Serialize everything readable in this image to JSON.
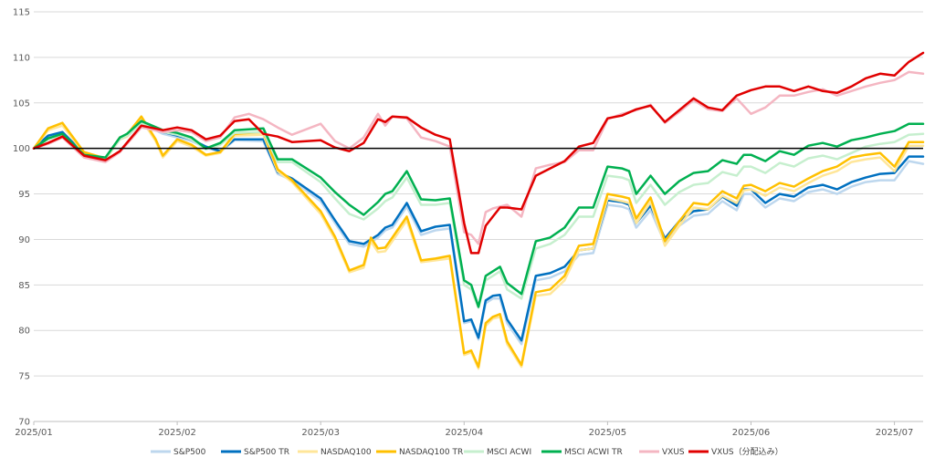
{
  "chart_data": {
    "type": "line",
    "title": "",
    "xlabel": "",
    "ylabel": "",
    "ylim": [
      70,
      115
    ],
    "yticks": [
      "70",
      "75",
      "80",
      "85",
      "90",
      "95",
      "100",
      "105",
      "110",
      "115"
    ],
    "xticks": [
      "2025/01",
      "2025/02",
      "2025/03",
      "2025/04",
      "2025/05",
      "2025/06",
      "2025/07"
    ],
    "xlim_months": [
      0,
      6.2
    ],
    "reference_line": 100,
    "grid": "horizontal",
    "legend_position": "bottom",
    "series": [
      {
        "name": "S&P500",
        "color": "#bdd7ee",
        "width": 2.5,
        "x": [
          0,
          0.1,
          0.2,
          0.35,
          0.5,
          0.6,
          0.65,
          0.75,
          0.9,
          1.0,
          1.1,
          1.2,
          1.3,
          1.4,
          1.6,
          1.7,
          1.8,
          2.0,
          2.1,
          2.2,
          2.3,
          2.4,
          2.45,
          2.5,
          2.6,
          2.7,
          2.8,
          2.9,
          3.0,
          3.05,
          3.1,
          3.15,
          3.2,
          3.25,
          3.3,
          3.4,
          3.5,
          3.6,
          3.7,
          3.8,
          3.9,
          4.0,
          4.1,
          4.15,
          4.2,
          4.3,
          4.4,
          4.5,
          4.6,
          4.7,
          4.8,
          4.9,
          4.95,
          5.0,
          5.1,
          5.2,
          5.3,
          5.4,
          5.5,
          5.6,
          5.7,
          5.8,
          5.9,
          6.0,
          6.1,
          6.2
        ],
        "y": [
          100,
          101.2,
          101.6,
          99.3,
          98.8,
          101,
          101.3,
          102.8,
          101.6,
          101.2,
          100.8,
          100.1,
          99.6,
          100.9,
          100.8,
          97.2,
          96.5,
          94.2,
          91.8,
          89.5,
          89.2,
          90.2,
          91,
          91.3,
          93.6,
          90.5,
          91,
          91.2,
          80.8,
          81,
          79,
          83,
          83.5,
          83.5,
          80.8,
          78.5,
          85.5,
          85.8,
          86.5,
          88.3,
          88.5,
          93.8,
          93.6,
          93.3,
          91.3,
          93.2,
          89.6,
          91.5,
          92.6,
          92.8,
          94.2,
          93.2,
          95,
          95,
          93.5,
          94.5,
          94.2,
          95.2,
          95.5,
          95,
          95.8,
          96.3,
          96.5,
          96.5,
          98.6,
          98.3
        ]
      },
      {
        "name": "S&P500 TR",
        "color": "#0070c0",
        "width": 2.5,
        "x": [
          0,
          0.1,
          0.2,
          0.35,
          0.5,
          0.6,
          0.65,
          0.75,
          0.9,
          1.0,
          1.1,
          1.2,
          1.3,
          1.4,
          1.6,
          1.7,
          1.8,
          2.0,
          2.1,
          2.2,
          2.3,
          2.4,
          2.45,
          2.5,
          2.6,
          2.7,
          2.8,
          2.9,
          3.0,
          3.05,
          3.1,
          3.15,
          3.2,
          3.25,
          3.3,
          3.4,
          3.5,
          3.6,
          3.7,
          3.8,
          3.9,
          4.0,
          4.1,
          4.15,
          4.2,
          4.3,
          4.4,
          4.5,
          4.6,
          4.7,
          4.8,
          4.9,
          4.95,
          5.0,
          5.1,
          5.2,
          5.3,
          5.4,
          5.5,
          5.6,
          5.7,
          5.8,
          5.9,
          6.0,
          6.1,
          6.2
        ],
        "y": [
          100,
          101.4,
          101.8,
          99.4,
          98.9,
          101.2,
          101.5,
          103,
          101.8,
          101.4,
          101,
          100.2,
          99.7,
          101,
          101,
          97.4,
          96.7,
          94.5,
          92.1,
          89.8,
          89.5,
          90.5,
          91.3,
          91.6,
          94,
          90.9,
          91.4,
          91.6,
          81,
          81.2,
          79.2,
          83.3,
          83.8,
          83.9,
          81.2,
          78.9,
          86,
          86.3,
          87,
          88.8,
          89,
          94.3,
          94.1,
          93.8,
          91.8,
          93.7,
          90.1,
          92,
          93.1,
          93.3,
          94.7,
          93.7,
          95.5,
          95.5,
          94,
          95,
          94.7,
          95.7,
          96,
          95.5,
          96.3,
          96.8,
          97.2,
          97.3,
          99.1,
          99.1
        ]
      },
      {
        "name": "NASDAQ100",
        "color": "#ffe699",
        "width": 2.5,
        "x": [
          0,
          0.1,
          0.2,
          0.35,
          0.5,
          0.6,
          0.65,
          0.75,
          0.85,
          0.9,
          1.0,
          1.1,
          1.2,
          1.3,
          1.4,
          1.6,
          1.7,
          1.8,
          2.0,
          2.1,
          2.2,
          2.3,
          2.35,
          2.4,
          2.45,
          2.5,
          2.6,
          2.7,
          2.8,
          2.9,
          3.0,
          3.05,
          3.1,
          3.15,
          3.2,
          3.25,
          3.3,
          3.4,
          3.5,
          3.6,
          3.7,
          3.8,
          3.9,
          4.0,
          4.1,
          4.15,
          4.2,
          4.3,
          4.4,
          4.5,
          4.6,
          4.7,
          4.8,
          4.9,
          4.95,
          5.0,
          5.1,
          5.2,
          5.3,
          5.4,
          5.5,
          5.6,
          5.7,
          5.8,
          5.9,
          6.0,
          6.1,
          6.2
        ],
        "y": [
          100,
          102,
          102.5,
          99.5,
          98.8,
          101,
          101.3,
          103.2,
          100.8,
          99,
          100.8,
          100.2,
          99.2,
          99.5,
          101.4,
          101.5,
          97.5,
          96.3,
          92.8,
          90,
          86.4,
          86.9,
          89.8,
          88.6,
          88.7,
          89.8,
          92.1,
          87.5,
          87.7,
          87.9,
          77.3,
          77.6,
          75.8,
          80.5,
          81.3,
          81.5,
          78.5,
          76,
          83.8,
          84,
          85.5,
          88.8,
          89,
          94.5,
          94.2,
          94,
          91.8,
          94.1,
          89.3,
          91.5,
          93.5,
          93.3,
          94.8,
          94,
          95.4,
          95.5,
          94.8,
          95.7,
          95.3,
          96.2,
          97,
          97.5,
          98.5,
          98.8,
          99,
          97.5,
          100.3,
          100.3
        ]
      },
      {
        "name": "NASDAQ100 TR",
        "color": "#ffc000",
        "width": 2.5,
        "x": [
          0,
          0.1,
          0.2,
          0.35,
          0.5,
          0.6,
          0.65,
          0.75,
          0.85,
          0.9,
          1.0,
          1.1,
          1.2,
          1.3,
          1.4,
          1.6,
          1.7,
          1.8,
          2.0,
          2.1,
          2.2,
          2.3,
          2.35,
          2.4,
          2.45,
          2.5,
          2.6,
          2.7,
          2.8,
          2.9,
          3.0,
          3.05,
          3.1,
          3.15,
          3.2,
          3.25,
          3.3,
          3.4,
          3.5,
          3.6,
          3.7,
          3.8,
          3.9,
          4.0,
          4.1,
          4.15,
          4.2,
          4.3,
          4.4,
          4.5,
          4.6,
          4.7,
          4.8,
          4.9,
          4.95,
          5.0,
          5.1,
          5.2,
          5.3,
          5.4,
          5.5,
          5.6,
          5.7,
          5.8,
          5.9,
          6.0,
          6.1,
          6.2
        ],
        "y": [
          100,
          102.2,
          102.8,
          99.6,
          98.9,
          101.2,
          101.5,
          103.5,
          101,
          99.2,
          101,
          100.4,
          99.3,
          99.6,
          101.6,
          101.8,
          97.7,
          96.5,
          93.1,
          90.3,
          86.6,
          87.2,
          90.2,
          89,
          89.1,
          90.2,
          92.5,
          87.7,
          87.9,
          88.2,
          77.5,
          77.8,
          76,
          80.8,
          81.5,
          81.8,
          78.8,
          76.2,
          84.2,
          84.5,
          86,
          89.3,
          89.5,
          95,
          94.7,
          94.5,
          92.3,
          94.6,
          89.8,
          92,
          94,
          93.8,
          95.3,
          94.5,
          95.9,
          96,
          95.3,
          96.2,
          95.8,
          96.7,
          97.5,
          98,
          99,
          99.3,
          99.5,
          98,
          100.7,
          100.7
        ]
      },
      {
        "name": "MSCI ACWI",
        "color": "#c6efce",
        "width": 2.5,
        "x": [
          0,
          0.1,
          0.2,
          0.35,
          0.5,
          0.6,
          0.65,
          0.75,
          0.9,
          1.0,
          1.1,
          1.2,
          1.3,
          1.4,
          1.6,
          1.7,
          1.8,
          2.0,
          2.1,
          2.2,
          2.3,
          2.4,
          2.45,
          2.5,
          2.6,
          2.7,
          2.8,
          2.9,
          3.0,
          3.05,
          3.1,
          3.15,
          3.2,
          3.25,
          3.3,
          3.4,
          3.5,
          3.6,
          3.7,
          3.8,
          3.9,
          4.0,
          4.1,
          4.15,
          4.2,
          4.3,
          4.4,
          4.5,
          4.6,
          4.7,
          4.8,
          4.9,
          4.95,
          5.0,
          5.1,
          5.2,
          5.3,
          5.4,
          5.5,
          5.6,
          5.7,
          5.8,
          5.9,
          6.0,
          6.1,
          6.2
        ],
        "y": [
          100,
          101,
          101.5,
          99.2,
          98.9,
          101,
          101.4,
          102.7,
          101.8,
          101.5,
          101,
          99.9,
          100.4,
          101.7,
          101.8,
          98.5,
          98.5,
          96.3,
          94.5,
          92.8,
          92.2,
          93.4,
          94.2,
          94.6,
          96.8,
          93.8,
          93.8,
          94,
          85,
          84.5,
          82.5,
          85.5,
          86,
          86.5,
          84.5,
          83.5,
          89,
          89.5,
          90.5,
          92.5,
          92.5,
          97,
          96.8,
          96.5,
          94,
          96,
          93.8,
          95.2,
          96,
          96.2,
          97.4,
          97,
          98,
          98,
          97.3,
          98.4,
          98,
          98.9,
          99.2,
          98.8,
          99.5,
          100.2,
          100.5,
          100.7,
          101.5,
          101.6
        ]
      },
      {
        "name": "MSCI ACWI TR",
        "color": "#00b050",
        "width": 2.5,
        "x": [
          0,
          0.1,
          0.2,
          0.35,
          0.5,
          0.6,
          0.65,
          0.75,
          0.9,
          1.0,
          1.1,
          1.2,
          1.3,
          1.4,
          1.6,
          1.7,
          1.8,
          2.0,
          2.1,
          2.2,
          2.3,
          2.4,
          2.45,
          2.5,
          2.6,
          2.7,
          2.8,
          2.9,
          3.0,
          3.05,
          3.1,
          3.15,
          3.2,
          3.25,
          3.3,
          3.4,
          3.5,
          3.6,
          3.7,
          3.8,
          3.9,
          4.0,
          4.1,
          4.15,
          4.2,
          4.3,
          4.4,
          4.5,
          4.6,
          4.7,
          4.8,
          4.9,
          4.95,
          5.0,
          5.1,
          5.2,
          5.3,
          5.4,
          5.5,
          5.6,
          5.7,
          5.8,
          5.9,
          6.0,
          6.1,
          6.2
        ],
        "y": [
          100,
          101.1,
          101.6,
          99.3,
          99,
          101.2,
          101.6,
          103,
          102,
          101.7,
          101.2,
          100,
          100.6,
          102,
          102.2,
          98.8,
          98.8,
          96.8,
          95.2,
          93.8,
          92.7,
          94.1,
          95,
          95.3,
          97.5,
          94.4,
          94.3,
          94.5,
          85.5,
          85,
          82.6,
          86,
          86.5,
          87,
          85.2,
          84,
          89.8,
          90.2,
          91.3,
          93.5,
          93.5,
          98,
          97.8,
          97.5,
          95,
          97,
          95,
          96.4,
          97.3,
          97.5,
          98.7,
          98.3,
          99.3,
          99.3,
          98.6,
          99.7,
          99.3,
          100.3,
          100.6,
          100.2,
          100.9,
          101.2,
          101.6,
          101.9,
          102.7,
          102.7
        ]
      },
      {
        "name": "VXUS",
        "color": "#f4b6c2",
        "width": 2.5,
        "x": [
          0,
          0.1,
          0.2,
          0.35,
          0.5,
          0.6,
          0.75,
          0.9,
          1.0,
          1.1,
          1.2,
          1.3,
          1.4,
          1.5,
          1.6,
          1.7,
          1.8,
          2.0,
          2.1,
          2.2,
          2.3,
          2.4,
          2.45,
          2.5,
          2.6,
          2.7,
          2.8,
          2.9,
          3.0,
          3.05,
          3.1,
          3.15,
          3.2,
          3.25,
          3.3,
          3.4,
          3.5,
          3.6,
          3.7,
          3.8,
          3.9,
          4.0,
          4.1,
          4.2,
          4.3,
          4.4,
          4.5,
          4.6,
          4.7,
          4.8,
          4.9,
          5.0,
          5.1,
          5.2,
          5.3,
          5.4,
          5.5,
          5.6,
          5.7,
          5.8,
          5.9,
          6.0,
          6.1,
          6.2
        ],
        "y": [
          100,
          100.5,
          101.2,
          99,
          98.5,
          99.6,
          102.3,
          101.8,
          102,
          101.8,
          100.8,
          101.2,
          103.4,
          103.8,
          103.2,
          102.3,
          101.5,
          102.7,
          100.8,
          100,
          101.2,
          103.8,
          102.5,
          103.5,
          103.3,
          101.2,
          100.8,
          100.2,
          90.8,
          90.5,
          89.5,
          93,
          93.4,
          93.6,
          93.8,
          92.5,
          97.8,
          98.2,
          98.5,
          99.8,
          99.8,
          103.2,
          103.8,
          104.2,
          104.8,
          102.8,
          104,
          105.3,
          104.3,
          104.1,
          105.5,
          103.8,
          104.5,
          105.8,
          105.8,
          106.2,
          106.5,
          105.8,
          106.3,
          106.8,
          107.2,
          107.5,
          108.4,
          108.2
        ]
      },
      {
        "name": "VXUS（分配込み）",
        "color": "#e00000",
        "width": 2.5,
        "x": [
          0,
          0.1,
          0.2,
          0.35,
          0.5,
          0.6,
          0.75,
          0.9,
          1.0,
          1.1,
          1.2,
          1.3,
          1.4,
          1.5,
          1.6,
          1.7,
          1.8,
          2.0,
          2.1,
          2.2,
          2.3,
          2.4,
          2.45,
          2.5,
          2.6,
          2.7,
          2.8,
          2.9,
          3.0,
          3.05,
          3.1,
          3.15,
          3.2,
          3.25,
          3.3,
          3.4,
          3.5,
          3.6,
          3.7,
          3.8,
          3.9,
          4.0,
          4.1,
          4.2,
          4.3,
          4.4,
          4.5,
          4.6,
          4.7,
          4.8,
          4.9,
          5.0,
          5.1,
          5.2,
          5.3,
          5.4,
          5.5,
          5.6,
          5.7,
          5.8,
          5.9,
          6.0,
          6.1,
          6.2
        ],
        "y": [
          100,
          100.6,
          101.3,
          99.2,
          98.7,
          99.7,
          102.5,
          102,
          102.3,
          102,
          101,
          101.4,
          103,
          103.2,
          101.6,
          101.3,
          100.7,
          100.9,
          100.1,
          99.7,
          100.6,
          103.2,
          102.9,
          103.5,
          103.4,
          102.3,
          101.5,
          101,
          91.8,
          88.5,
          88.5,
          91.5,
          92.5,
          93.5,
          93.5,
          93.3,
          97,
          97.8,
          98.6,
          100.2,
          100.6,
          103.3,
          103.6,
          104.3,
          104.7,
          102.9,
          104.2,
          105.5,
          104.5,
          104.2,
          105.8,
          106.4,
          106.8,
          106.8,
          106.3,
          106.8,
          106.3,
          106.1,
          106.8,
          107.7,
          108.2,
          108,
          109.5,
          110.5
        ]
      }
    ]
  }
}
